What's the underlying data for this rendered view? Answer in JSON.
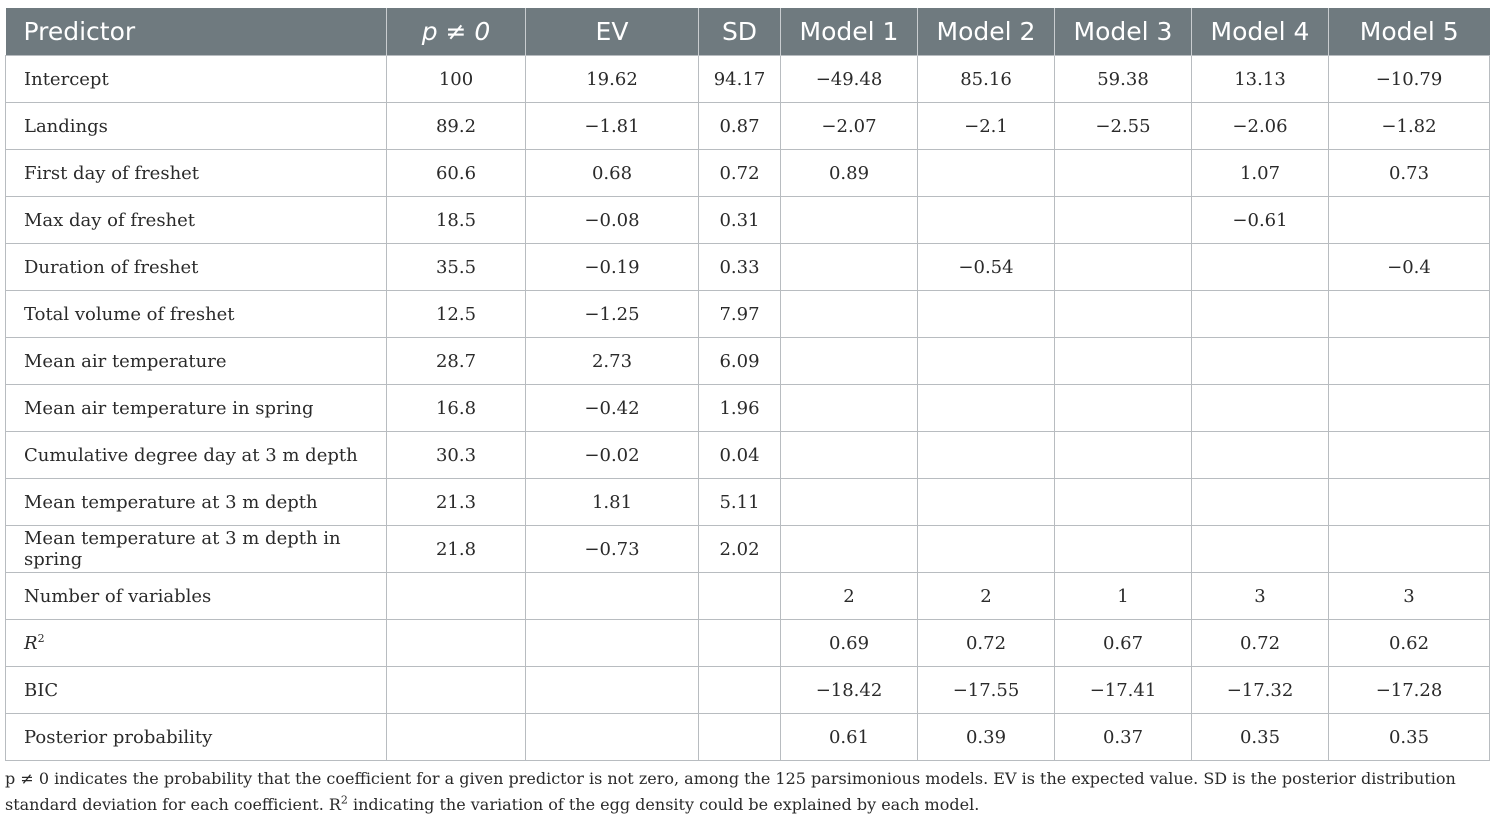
{
  "header": {
    "predictor": "Predictor",
    "p_ne_0": "p ≠ 0",
    "ev": "EV",
    "sd": "SD",
    "models": [
      "Model 1",
      "Model 2",
      "Model 3",
      "Model 4",
      "Model 5"
    ]
  },
  "rows": [
    {
      "label": "Intercept",
      "p": "100",
      "ev": "19.62",
      "sd": "94.17",
      "m": [
        "−49.48",
        "85.16",
        "59.38",
        "13.13",
        "−10.79"
      ]
    },
    {
      "label": "Landings",
      "p": "89.2",
      "ev": "−1.81",
      "sd": "0.87",
      "m": [
        "−2.07",
        "−2.1",
        "−2.55",
        "−2.06",
        "−1.82"
      ]
    },
    {
      "label": "First day of freshet",
      "p": "60.6",
      "ev": "0.68",
      "sd": "0.72",
      "m": [
        "0.89",
        "",
        "",
        "1.07",
        "0.73"
      ]
    },
    {
      "label": "Max day of freshet",
      "p": "18.5",
      "ev": "−0.08",
      "sd": "0.31",
      "m": [
        "",
        "",
        "",
        "−0.61",
        ""
      ]
    },
    {
      "label": "Duration of freshet",
      "p": "35.5",
      "ev": "−0.19",
      "sd": "0.33",
      "m": [
        "",
        "−0.54",
        "",
        "",
        "−0.4"
      ]
    },
    {
      "label": "Total volume of freshet",
      "p": "12.5",
      "ev": "−1.25",
      "sd": "7.97",
      "m": [
        "",
        "",
        "",
        "",
        ""
      ]
    },
    {
      "label": "Mean air temperature",
      "p": "28.7",
      "ev": "2.73",
      "sd": "6.09",
      "m": [
        "",
        "",
        "",
        "",
        ""
      ]
    },
    {
      "label": "Mean air temperature in spring",
      "p": "16.8",
      "ev": "−0.42",
      "sd": "1.96",
      "m": [
        "",
        "",
        "",
        "",
        ""
      ]
    },
    {
      "label": "Cumulative degree day at 3 m depth",
      "p": "30.3",
      "ev": "−0.02",
      "sd": "0.04",
      "m": [
        "",
        "",
        "",
        "",
        ""
      ]
    },
    {
      "label": "Mean temperature at 3 m depth",
      "p": "21.3",
      "ev": "1.81",
      "sd": "5.11",
      "m": [
        "",
        "",
        "",
        "",
        ""
      ]
    },
    {
      "label": "Mean temperature at 3 m depth in spring",
      "p": "21.8",
      "ev": "−0.73",
      "sd": "2.02",
      "m": [
        "",
        "",
        "",
        "",
        ""
      ]
    },
    {
      "label": "Number of variables",
      "p": "",
      "ev": "",
      "sd": "",
      "m": [
        "2",
        "2",
        "1",
        "3",
        "3"
      ]
    },
    {
      "label": "R",
      "label_sup": "2",
      "p": "",
      "ev": "",
      "sd": "",
      "m": [
        "0.69",
        "0.72",
        "0.67",
        "0.72",
        "0.62"
      ]
    },
    {
      "label": "BIC",
      "p": "",
      "ev": "",
      "sd": "",
      "m": [
        "−18.42",
        "−17.55",
        "−17.41",
        "−17.32",
        "−17.28"
      ]
    },
    {
      "label": "Posterior probability",
      "p": "",
      "ev": "",
      "sd": "",
      "m": [
        "0.61",
        "0.39",
        "0.37",
        "0.35",
        "0.35"
      ]
    }
  ],
  "footnote": {
    "part1": "p ≠  0 indicates the probability that the coefficient for a given predictor is not zero, among the 125 parsimonious models. EV is the expected value. SD is the posterior distribution standard deviation for each coefficient. R",
    "sup": "2",
    "part2": " indicating the variation of the egg density could be explained by each model."
  }
}
